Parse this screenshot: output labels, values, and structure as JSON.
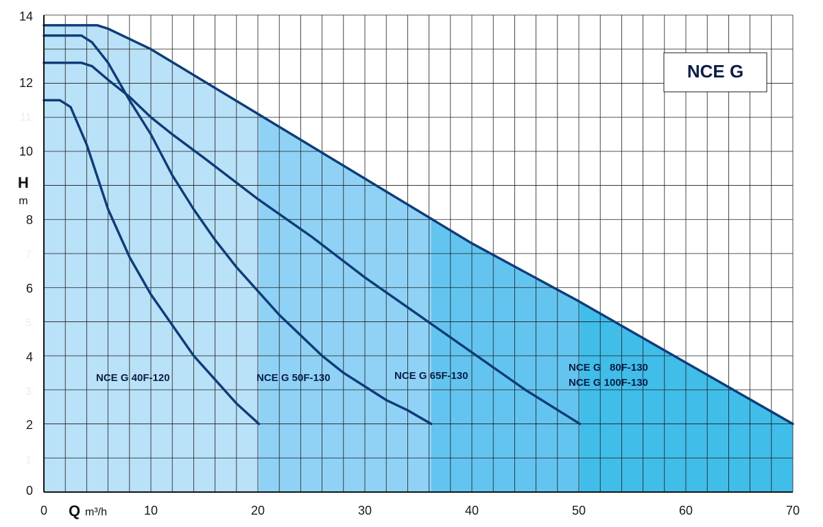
{
  "chart_data": {
    "type": "line",
    "title": "NCE G",
    "xlabel": {
      "symbol": "Q",
      "unit": "m³/h"
    },
    "ylabel": {
      "symbol": "H",
      "unit": "m"
    },
    "xlim": [
      0,
      70
    ],
    "ylim": [
      0,
      14
    ],
    "x_ticks": [
      "0",
      "10",
      "20",
      "30",
      "40",
      "50",
      "60",
      "70"
    ],
    "y_ticks": [
      "0",
      "2",
      "4",
      "6",
      "8",
      "10",
      "12",
      "14"
    ],
    "y_ticks_faint": [
      "1",
      "3",
      "5",
      "7",
      "11"
    ],
    "grid": true,
    "x_grid_step": 2,
    "y_grid_step": 1,
    "colors": {
      "curve": "#0f3c78",
      "grid": "#1a1a1a",
      "fill_1": "#b9e1f8",
      "fill_2": "#8fd2f5",
      "fill_3": "#63c5ef",
      "fill_4": "#41bde9"
    },
    "series": [
      {
        "label": "NCE G 40F-120",
        "points": [
          [
            0,
            11.5
          ],
          [
            1.5,
            11.5
          ],
          [
            2.5,
            11.3
          ],
          [
            4,
            10.2
          ],
          [
            6,
            8.3
          ],
          [
            8,
            6.9
          ],
          [
            10,
            5.8
          ],
          [
            12,
            4.9
          ],
          [
            14,
            4.0
          ],
          [
            16,
            3.3
          ],
          [
            18,
            2.6
          ],
          [
            20.1,
            2.0
          ]
        ]
      },
      {
        "label": "NCE G 50F-130",
        "points": [
          [
            0,
            13.4
          ],
          [
            3.5,
            13.4
          ],
          [
            4.5,
            13.2
          ],
          [
            6,
            12.6
          ],
          [
            8,
            11.5
          ],
          [
            10,
            10.5
          ],
          [
            12,
            9.3
          ],
          [
            14,
            8.3
          ],
          [
            16,
            7.4
          ],
          [
            18,
            6.6
          ],
          [
            20,
            5.9
          ],
          [
            22,
            5.2
          ],
          [
            24,
            4.6
          ],
          [
            26,
            4.0
          ],
          [
            28,
            3.5
          ],
          [
            30,
            3.1
          ],
          [
            32,
            2.7
          ],
          [
            34,
            2.4
          ],
          [
            36.2,
            2.0
          ]
        ]
      },
      {
        "label": "NCE G 65F-130",
        "points": [
          [
            0,
            12.6
          ],
          [
            3.5,
            12.6
          ],
          [
            4.5,
            12.5
          ],
          [
            6,
            12.1
          ],
          [
            8,
            11.6
          ],
          [
            10,
            11.0
          ],
          [
            12,
            10.5
          ],
          [
            15,
            9.8
          ],
          [
            20,
            8.6
          ],
          [
            25,
            7.5
          ],
          [
            30,
            6.3
          ],
          [
            35,
            5.2
          ],
          [
            40,
            4.1
          ],
          [
            45,
            3.0
          ],
          [
            50.1,
            2.0
          ]
        ]
      },
      {
        "label": "NCE G   80F-130",
        "label_line2": "NCE G 100F-130",
        "points": [
          [
            0,
            13.7
          ],
          [
            5,
            13.7
          ],
          [
            6,
            13.6
          ],
          [
            8,
            13.3
          ],
          [
            10,
            13.0
          ],
          [
            20,
            11.1
          ],
          [
            30,
            9.2
          ],
          [
            40,
            7.3
          ],
          [
            50,
            5.6
          ],
          [
            60,
            3.8
          ],
          [
            70,
            2.0
          ]
        ]
      }
    ],
    "fill_boundaries_x": [
      20.1,
      36.2,
      50.1,
      70
    ]
  }
}
